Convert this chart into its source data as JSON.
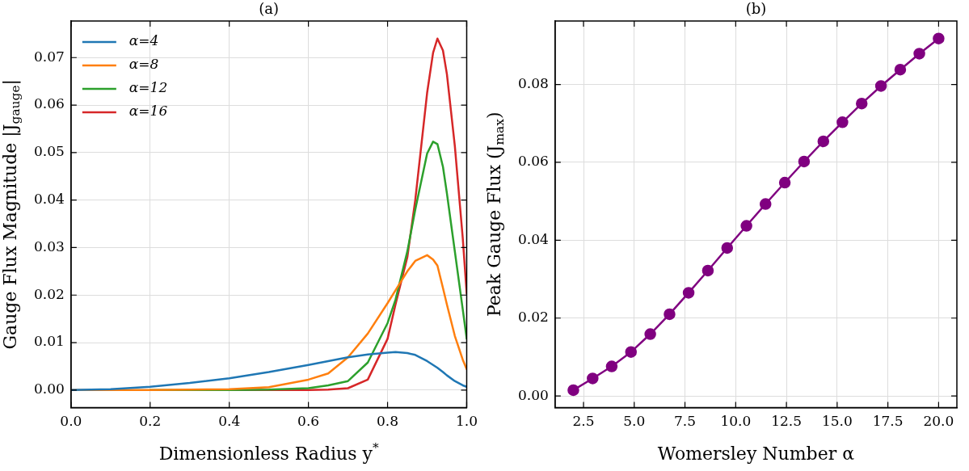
{
  "chart_data": [
    {
      "type": "line",
      "title": "(a)",
      "xlabel": "Dimensionless Radius y$^{*}$",
      "ylabel": "Gauge Flux Magnitude |J$_{gauge}$|",
      "x": [
        0,
        0.1,
        0.2,
        0.3,
        0.4,
        0.5,
        0.6,
        0.65,
        0.7,
        0.75,
        0.8,
        0.82,
        0.85,
        0.87,
        0.9,
        0.915,
        0.926,
        0.94,
        0.95,
        0.97,
        0.99,
        1.0
      ],
      "series": [
        {
          "name": "α=4",
          "color": "#1f77b4",
          "values": [
            0,
            0.0002,
            0.0007,
            0.0015,
            0.0025,
            0.0038,
            0.0053,
            0.0061,
            0.0069,
            0.0075,
            0.0079,
            0.008,
            0.0078,
            0.0074,
            0.0061,
            0.0053,
            0.0047,
            0.0038,
            0.0031,
            0.0019,
            0.001,
            0.0007
          ]
        },
        {
          "name": "α=8",
          "color": "#ff7f0e",
          "values": [
            0,
            0,
            0,
            0.0001,
            0.0002,
            0.0006,
            0.0022,
            0.0035,
            0.0069,
            0.0119,
            0.0183,
            0.021,
            0.025,
            0.0272,
            0.0284,
            0.0275,
            0.0262,
            0.0215,
            0.018,
            0.0114,
            0.0064,
            0.0044
          ]
        },
        {
          "name": "α=12",
          "color": "#2ca02c",
          "values": [
            null,
            null,
            0,
            0,
            0,
            0.0001,
            0.0004,
            0.001,
            0.0019,
            0.0058,
            0.0141,
            0.019,
            0.0292,
            0.038,
            0.0498,
            0.0523,
            0.0518,
            0.047,
            0.0414,
            0.0292,
            0.017,
            0.0108
          ]
        },
        {
          "name": "α=16",
          "color": "#d62728",
          "values": [
            null,
            null,
            null,
            null,
            0,
            0,
            0,
            0.0001,
            0.0004,
            0.0022,
            0.0108,
            0.018,
            0.028,
            0.04,
            0.0626,
            0.071,
            0.074,
            0.0715,
            0.0665,
            0.0514,
            0.032,
            0.0203
          ]
        }
      ],
      "xlim": [
        0,
        1
      ],
      "ylim": [
        -0.0037,
        0.0777
      ],
      "xticks": [
        {
          "value": 0,
          "label": "0.0"
        },
        {
          "value": 0.2,
          "label": "0.2"
        },
        {
          "value": 0.4,
          "label": "0.4"
        },
        {
          "value": 0.6,
          "label": "0.6"
        },
        {
          "value": 0.8,
          "label": "0.8"
        },
        {
          "value": 1,
          "label": "1.0"
        }
      ],
      "yticks": [
        {
          "value": 0,
          "label": "0.00"
        },
        {
          "value": 0.01,
          "label": "0.01"
        },
        {
          "value": 0.02,
          "label": "0.02"
        },
        {
          "value": 0.03,
          "label": "0.03"
        },
        {
          "value": 0.04,
          "label": "0.04"
        },
        {
          "value": 0.05,
          "label": "0.05"
        },
        {
          "value": 0.06,
          "label": "0.06"
        },
        {
          "value": 0.07,
          "label": "0.07"
        }
      ],
      "grid": true,
      "legend": "top left",
      "marker": "none",
      "line_style": "solid"
    },
    {
      "type": "line",
      "title": "(b)",
      "xlabel": "Womersley Number α",
      "ylabel": "Peak Gauge Flux (J$_{max}$)",
      "x": [
        2,
        2.95,
        3.89,
        4.84,
        5.79,
        6.74,
        7.68,
        8.63,
        9.58,
        10.53,
        11.47,
        12.42,
        13.37,
        14.32,
        15.26,
        16.21,
        17.16,
        18.11,
        19.05,
        20
      ],
      "series": [
        {
          "color": "#800080",
          "values": [
            0.0015,
            0.0045,
            0.0076,
            0.0113,
            0.0159,
            0.021,
            0.0265,
            0.0322,
            0.038,
            0.0437,
            0.0493,
            0.0548,
            0.0602,
            0.0654,
            0.0703,
            0.0751,
            0.0796,
            0.0838,
            0.0879,
            0.0918
          ]
        }
      ],
      "xlim": [
        1.1,
        20.9
      ],
      "ylim": [
        -0.003,
        0.0963
      ],
      "xticks": [
        {
          "value": 2.5,
          "label": "2.5"
        },
        {
          "value": 5,
          "label": "5.0"
        },
        {
          "value": 7.5,
          "label": "7.5"
        },
        {
          "value": 10,
          "label": "10.0"
        },
        {
          "value": 12.5,
          "label": "12.5"
        },
        {
          "value": 15,
          "label": "15.0"
        },
        {
          "value": 17.5,
          "label": "17.5"
        },
        {
          "value": 20,
          "label": "20.0"
        }
      ],
      "yticks": [
        {
          "value": 0,
          "label": "0.00"
        },
        {
          "value": 0.02,
          "label": "0.02"
        },
        {
          "value": 0.04,
          "label": "0.04"
        },
        {
          "value": 0.06,
          "label": "0.06"
        },
        {
          "value": 0.08,
          "label": "0.08"
        }
      ],
      "grid": true,
      "marker": "circle",
      "line_style": "solid"
    }
  ]
}
